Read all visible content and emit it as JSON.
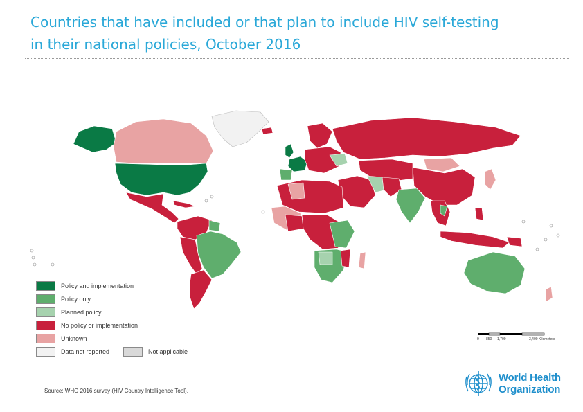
{
  "header": {
    "title_line1": "Countries that have included or that plan to include HIV self-testing",
    "title_line2": "in their national policies, October 2016"
  },
  "legend": {
    "items": [
      {
        "label": "Policy and implementation",
        "color": "#0a7a45"
      },
      {
        "label": "Policy only",
        "color": "#5fae6d"
      },
      {
        "label": "Planned policy",
        "color": "#a6d2ae"
      },
      {
        "label": "No policy or implementation",
        "color": "#c8203c"
      },
      {
        "label": "Unknown",
        "color": "#e8a3a3"
      },
      {
        "label": "Data not reported",
        "color": "#f2f2f2"
      },
      {
        "label": "Not applicable",
        "color": "#d9d9d9"
      }
    ]
  },
  "scale_bar": {
    "ticks": [
      "0",
      "850",
      "1,700",
      "3,400 Kilometers"
    ]
  },
  "source": "Source:  WHO 2016 survey (HIV Country Intelligence Tool).",
  "logo": {
    "line1": "World Health",
    "line2": "Organization"
  },
  "colors": {
    "title": "#2aa8d8",
    "policy_and_implementation": "#0a7a45",
    "policy_only": "#5fae6d",
    "planned_policy": "#a6d2ae",
    "no_policy": "#c8203c",
    "unknown": "#e8a3a3",
    "data_not_reported": "#f2f2f2",
    "not_applicable": "#d9d9d9",
    "who_blue": "#1f8fcc"
  }
}
